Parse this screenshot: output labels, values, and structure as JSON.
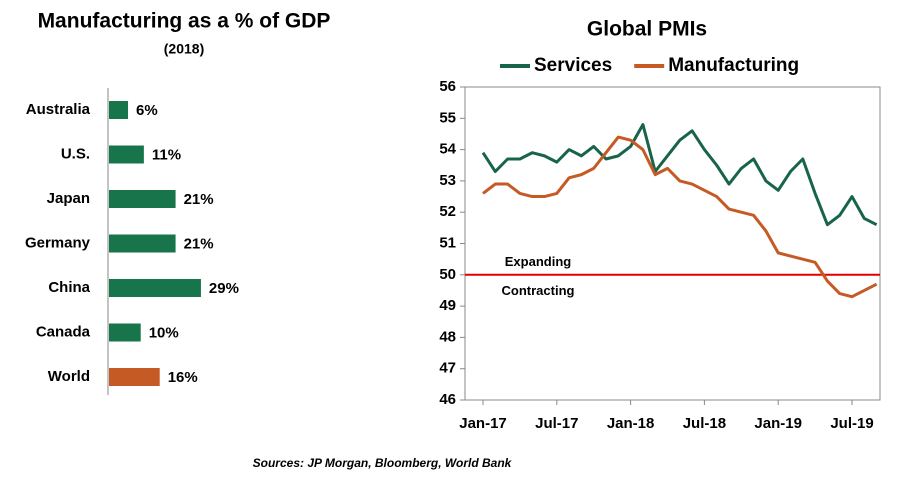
{
  "chart_data": [
    {
      "type": "bar",
      "orientation": "horizontal",
      "title": "Manufacturing as a % of GDP",
      "subtitle": "(2018)",
      "categories": [
        "Australia",
        "U.S.",
        "Japan",
        "Germany",
        "China",
        "Canada",
        "World"
      ],
      "values": [
        6,
        11,
        21,
        21,
        29,
        10,
        16
      ],
      "value_labels": [
        "6%",
        "11%",
        "21%",
        "21%",
        "29%",
        "10%",
        "16%"
      ],
      "colors": [
        "#17744b",
        "#17744b",
        "#17744b",
        "#17744b",
        "#17744b",
        "#17744b",
        "#c55a24"
      ]
    },
    {
      "type": "line",
      "title": "Global PMIs",
      "categories": [
        "Jan-17",
        null,
        null,
        null,
        null,
        null,
        "Jul-17",
        null,
        null,
        null,
        null,
        null,
        "Jan-18",
        null,
        null,
        null,
        null,
        null,
        "Jul-18",
        null,
        null,
        null,
        null,
        null,
        "Jan-19",
        null,
        null,
        null,
        null,
        null,
        "Jul-19",
        null,
        null
      ],
      "series": [
        {
          "name": "Services",
          "color": "#17644a",
          "values": [
            53.9,
            53.3,
            53.7,
            53.7,
            53.9,
            53.8,
            53.6,
            54.0,
            53.8,
            54.1,
            53.7,
            53.8,
            54.1,
            54.8,
            53.3,
            53.8,
            54.3,
            54.6,
            54.0,
            53.5,
            52.9,
            53.4,
            53.7,
            53.0,
            52.7,
            53.3,
            53.7,
            52.6,
            51.6,
            51.9,
            52.5,
            51.8,
            51.6
          ]
        },
        {
          "name": "Manufacturing",
          "color": "#c55a24",
          "values": [
            52.6,
            52.9,
            52.9,
            52.6,
            52.5,
            52.5,
            52.6,
            53.1,
            53.2,
            53.4,
            53.9,
            54.4,
            54.3,
            54.0,
            53.2,
            53.4,
            53.0,
            52.9,
            52.7,
            52.5,
            52.1,
            52.0,
            51.9,
            51.4,
            50.7,
            50.6,
            50.5,
            50.4,
            49.8,
            49.4,
            49.3,
            49.5,
            49.7
          ]
        }
      ],
      "ylim": [
        46,
        56
      ],
      "yticks": [
        46,
        47,
        48,
        49,
        50,
        51,
        52,
        53,
        54,
        55,
        56
      ],
      "reference_line": {
        "value": 50,
        "color": "#e00000",
        "label_above": "Expanding",
        "label_below": "Contracting"
      }
    }
  ],
  "source": "Sources: JP Morgan, Bloomberg, World Bank"
}
